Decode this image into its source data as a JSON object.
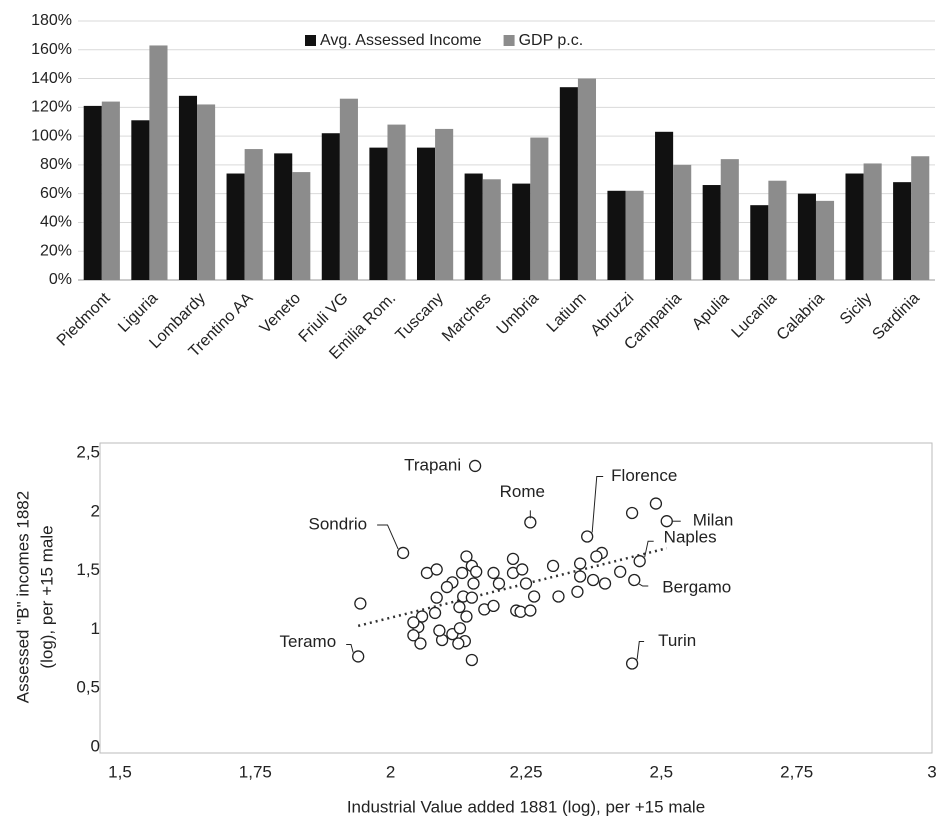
{
  "chart_data": [
    {
      "type": "bar",
      "categories": [
        "Piedmont",
        "Liguria",
        "Lombardy",
        "Trentino AA",
        "Veneto",
        "Friuli VG",
        "Emilia Rom.",
        "Tuscany",
        "Marches",
        "Umbria",
        "Latium",
        "Abruzzi",
        "Campania",
        "Apulia",
        "Lucania",
        "Calabria",
        "Sicily",
        "Sardinia"
      ],
      "series": [
        {
          "name": "Avg. Assessed Income",
          "color": "#111111",
          "values": [
            121,
            111,
            128,
            74,
            88,
            102,
            92,
            92,
            74,
            67,
            134,
            62,
            103,
            66,
            52,
            60,
            74,
            68
          ]
        },
        {
          "name": "GDP p.c.",
          "color": "#8c8c8c",
          "values": [
            124,
            163,
            122,
            91,
            75,
            126,
            108,
            105,
            70,
            99,
            140,
            62,
            80,
            84,
            69,
            55,
            81,
            86
          ]
        }
      ],
      "ylim": [
        0,
        180
      ],
      "yticks": [
        {
          "value": 0,
          "label": "0%"
        },
        {
          "value": 20,
          "label": "20%"
        },
        {
          "value": 40,
          "label": "40%"
        },
        {
          "value": 60,
          "label": "60%"
        },
        {
          "value": 80,
          "label": "80%"
        },
        {
          "value": 100,
          "label": "100%"
        },
        {
          "value": 120,
          "label": "120%"
        },
        {
          "value": 140,
          "label": "140%"
        },
        {
          "value": 160,
          "label": "160%"
        },
        {
          "value": 180,
          "label": "180%"
        }
      ],
      "grid": true,
      "legend": "top"
    },
    {
      "type": "scatter",
      "xlabel": "Industrial Value added 1881 (log), per +15 male",
      "ylabel": [
        "Assessed \"B\" incomes 1882",
        "(log), per +15 male"
      ],
      "x": [
        2.156,
        2.258,
        2.363,
        2.51,
        2.46,
        2.45,
        2.446,
        2.023,
        1.94,
        2.49,
        2.446,
        1.944,
        2.39,
        2.38,
        2.35,
        2.35,
        2.345,
        2.374,
        2.396,
        2.424,
        2.3,
        2.31,
        2.226,
        2.226,
        2.243,
        2.25,
        2.265,
        2.232,
        2.24,
        2.258,
        2.14,
        2.15,
        2.132,
        2.158,
        2.114,
        2.153,
        2.19,
        2.2,
        2.067,
        2.085,
        2.104,
        2.085,
        2.134,
        2.15,
        2.173,
        2.19,
        2.127,
        2.14,
        2.082,
        2.058,
        2.051,
        2.042,
        2.055,
        2.042,
        2.095,
        2.114,
        2.128,
        2.137,
        2.125,
        2.15,
        2.09
      ],
      "y": [
        2.39,
        1.91,
        1.79,
        1.92,
        1.58,
        1.42,
        0.71,
        1.65,
        0.77,
        2.07,
        1.99,
        1.22,
        1.65,
        1.62,
        1.56,
        1.45,
        1.32,
        1.42,
        1.39,
        1.49,
        1.54,
        1.28,
        1.6,
        1.48,
        1.51,
        1.39,
        1.28,
        1.16,
        1.15,
        1.16,
        1.62,
        1.54,
        1.48,
        1.49,
        1.4,
        1.39,
        1.48,
        1.39,
        1.48,
        1.51,
        1.36,
        1.27,
        1.28,
        1.27,
        1.17,
        1.2,
        1.19,
        1.11,
        1.14,
        1.11,
        1.02,
        0.95,
        0.88,
        1.06,
        0.91,
        0.96,
        1.01,
        0.9,
        0.88,
        0.74,
        0.99
      ],
      "labels": [
        "Trapani",
        "Rome",
        "Florence",
        "Milan",
        "Naples",
        "Bergamo",
        "Turin",
        "Sondrio",
        "Teramo",
        null,
        null,
        null,
        null,
        null,
        null,
        null,
        null,
        null,
        null,
        null,
        null,
        null,
        null,
        null,
        null,
        null,
        null,
        null,
        null,
        null,
        null,
        null,
        null,
        null,
        null,
        null,
        null,
        null,
        null,
        null,
        null,
        null,
        null,
        null,
        null,
        null,
        null,
        null,
        null,
        null,
        null,
        null,
        null,
        null,
        null,
        null,
        null,
        null,
        null,
        null,
        null
      ],
      "trendline": {
        "x": [
          1.94,
          2.51
        ],
        "y": [
          1.03,
          1.69
        ]
      },
      "xlim": [
        1.5,
        3
      ],
      "xticks": [
        {
          "value": 1.5,
          "label": "1,5"
        },
        {
          "value": 1.75,
          "label": "1,75"
        },
        2,
        {
          "value": 2.25,
          "label": "2,25"
        },
        {
          "value": 2.5,
          "label": "2,5"
        },
        {
          "value": 2.75,
          "label": "2,75"
        },
        3
      ],
      "ylim": [
        0,
        2.5
      ],
      "yticks": [
        0,
        {
          "value": 0.5,
          "label": "0,5"
        },
        1,
        {
          "value": 1.5,
          "label": "1,5"
        },
        2,
        {
          "value": 2.5,
          "label": "2,5"
        }
      ]
    }
  ]
}
